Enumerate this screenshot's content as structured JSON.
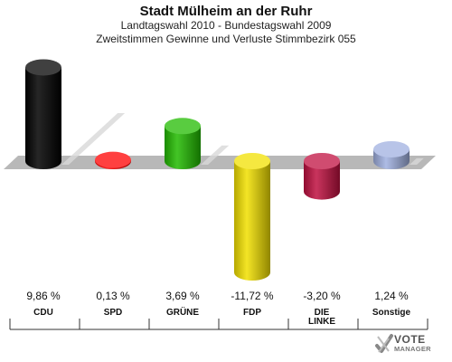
{
  "header": {
    "title": "Stadt Mülheim an der Ruhr",
    "subtitle1": "Landtagswahl 2010 - Bundestagswahl 2009",
    "subtitle2": "Zweitstimmen Gewinne und Verluste Stimmbezirk 055"
  },
  "logo": {
    "line1": "VOTE",
    "line2": "MANAGER",
    "icon": "checkmark-x-icon"
  },
  "chart_data": {
    "type": "bar",
    "title": "Stadt Mülheim an der Ruhr",
    "subtitle": "Landtagswahl 2010 - Bundestagswahl 2009 / Zweitstimmen Gewinne und Verluste Stimmbezirk 055",
    "categories": [
      "CDU",
      "SPD",
      "GRÜNE",
      "FDP",
      "DIE LINKE",
      "Sonstige"
    ],
    "category_lines": [
      [
        "CDU"
      ],
      [
        "SPD"
      ],
      [
        "GRÜNE"
      ],
      [
        "FDP"
      ],
      [
        "DIE",
        "LINKE"
      ],
      [
        "Sonstige"
      ]
    ],
    "values": [
      9.86,
      0.13,
      3.69,
      -11.72,
      -3.2,
      1.24
    ],
    "value_labels": [
      "9,86 %",
      "0,13 %",
      "3,69 %",
      "-11,72 %",
      "-3,20 %",
      "1,24 %"
    ],
    "colors": [
      "#000000",
      "#ff0000",
      "#22bb00",
      "#f2e000",
      "#c01040",
      "#a0b0e0"
    ],
    "ylim": [
      -12,
      10
    ],
    "grid": false,
    "legend": "none"
  }
}
